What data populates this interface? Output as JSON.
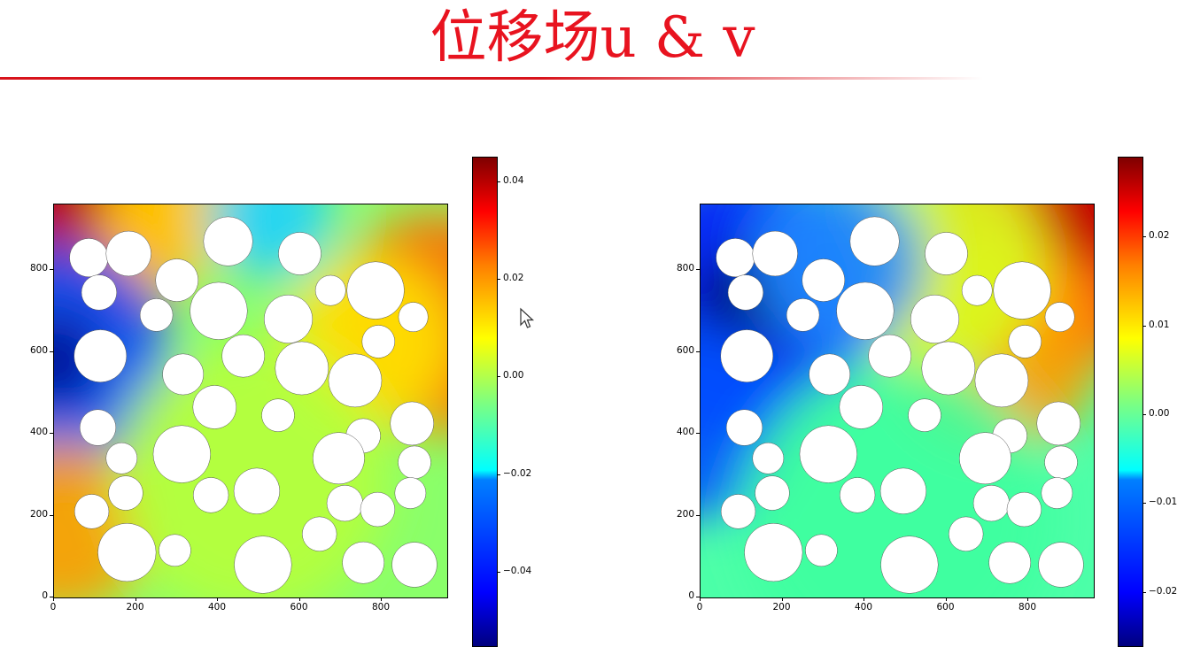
{
  "slide": {
    "title": "位移场u & v"
  },
  "chart_data": [
    {
      "type": "heatmap",
      "field": "u",
      "colormap": "jet",
      "xlim": [
        0,
        960
      ],
      "ylim": [
        0,
        960
      ],
      "x_ticks": [
        0,
        200,
        400,
        600,
        800
      ],
      "y_ticks": [
        0,
        200,
        400,
        600,
        800
      ],
      "colorbar": {
        "range": [
          -0.055,
          0.045
        ],
        "ticks": [
          0.04,
          0.02,
          0.0,
          -0.02,
          -0.04
        ],
        "tick_labels": [
          "0.04",
          "0.02",
          "0.00",
          "−0.02",
          "−0.04"
        ]
      },
      "extremes": {
        "max_region": "top-left and right edge",
        "min_region": "left edge near y=600"
      }
    },
    {
      "type": "heatmap",
      "field": "v",
      "colormap": "jet",
      "xlim": [
        0,
        960
      ],
      "ylim": [
        0,
        960
      ],
      "x_ticks": [
        0,
        200,
        400,
        600,
        800
      ],
      "y_ticks": [
        0,
        200,
        400,
        600,
        800
      ],
      "colorbar": {
        "range": [
          -0.026,
          0.029
        ],
        "ticks": [
          0.02,
          0.01,
          0.0,
          -0.01,
          -0.02
        ],
        "tick_labels": [
          "0.02",
          "0.01",
          "0.00",
          "−0.01",
          "−0.02"
        ]
      },
      "extremes": {
        "max_region": "top-right corner",
        "min_region": "left side near y=700"
      }
    }
  ],
  "inclusions": [
    {
      "x": 85,
      "y": 830,
      "r": 47
    },
    {
      "x": 182,
      "y": 840,
      "r": 55
    },
    {
      "x": 425,
      "y": 870,
      "r": 60
    },
    {
      "x": 600,
      "y": 840,
      "r": 52
    },
    {
      "x": 300,
      "y": 775,
      "r": 52
    },
    {
      "x": 110,
      "y": 745,
      "r": 43
    },
    {
      "x": 675,
      "y": 750,
      "r": 37
    },
    {
      "x": 785,
      "y": 750,
      "r": 70
    },
    {
      "x": 250,
      "y": 690,
      "r": 40
    },
    {
      "x": 402,
      "y": 700,
      "r": 70
    },
    {
      "x": 572,
      "y": 680,
      "r": 59
    },
    {
      "x": 877,
      "y": 685,
      "r": 36
    },
    {
      "x": 113,
      "y": 590,
      "r": 64
    },
    {
      "x": 462,
      "y": 590,
      "r": 52
    },
    {
      "x": 605,
      "y": 560,
      "r": 65
    },
    {
      "x": 792,
      "y": 625,
      "r": 40
    },
    {
      "x": 315,
      "y": 545,
      "r": 50
    },
    {
      "x": 735,
      "y": 530,
      "r": 65
    },
    {
      "x": 392,
      "y": 465,
      "r": 53
    },
    {
      "x": 547,
      "y": 445,
      "r": 40
    },
    {
      "x": 107,
      "y": 415,
      "r": 44
    },
    {
      "x": 755,
      "y": 395,
      "r": 42
    },
    {
      "x": 874,
      "y": 425,
      "r": 53
    },
    {
      "x": 165,
      "y": 340,
      "r": 38
    },
    {
      "x": 312,
      "y": 350,
      "r": 70
    },
    {
      "x": 695,
      "y": 340,
      "r": 63
    },
    {
      "x": 880,
      "y": 330,
      "r": 40
    },
    {
      "x": 175,
      "y": 255,
      "r": 42
    },
    {
      "x": 383,
      "y": 250,
      "r": 43
    },
    {
      "x": 495,
      "y": 260,
      "r": 56
    },
    {
      "x": 870,
      "y": 255,
      "r": 38
    },
    {
      "x": 92,
      "y": 210,
      "r": 42
    },
    {
      "x": 710,
      "y": 230,
      "r": 44
    },
    {
      "x": 790,
      "y": 215,
      "r": 42
    },
    {
      "x": 648,
      "y": 155,
      "r": 42
    },
    {
      "x": 178,
      "y": 110,
      "r": 71
    },
    {
      "x": 295,
      "y": 115,
      "r": 39
    },
    {
      "x": 510,
      "y": 80,
      "r": 70
    },
    {
      "x": 755,
      "y": 85,
      "r": 51
    },
    {
      "x": 880,
      "y": 80,
      "r": 55
    }
  ],
  "colors": {
    "title": "#e8131f",
    "rule": "#d8141c",
    "inclusion": "#ffffff"
  },
  "cursor": {
    "icon": "mouse-pointer-icon"
  }
}
